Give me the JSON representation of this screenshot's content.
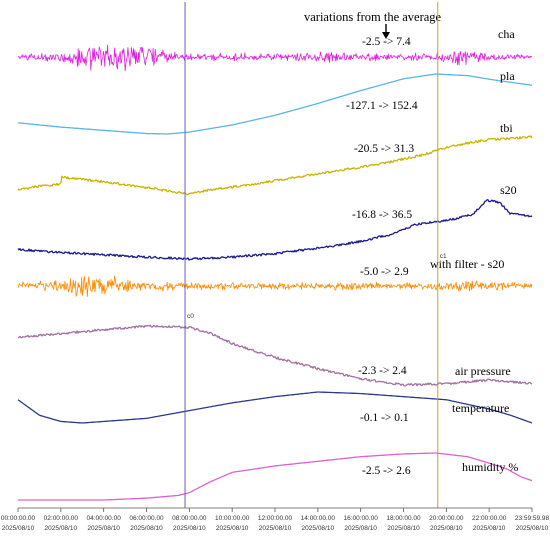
{
  "chart_data": {
    "type": "line",
    "title": "variations from the average",
    "x_tick_times": [
      "00:00:00.00",
      "02:00:00.00",
      "04:00:00.00",
      "06:00:00.00",
      "08:00:00.00",
      "10:00:00.00",
      "12:00:00.00",
      "14:00:00.00",
      "16:00:00.00",
      "18:00:00.00",
      "20:00:00.00",
      "22:00:00.00",
      "23:59:59.98"
    ],
    "x_tick_date": "2025/08/10",
    "x_range_hours": [
      0,
      24
    ],
    "cursor_lines": [
      {
        "label": "c0",
        "hour": 7.8,
        "color": "#6a5acd"
      },
      {
        "label": "c1",
        "hour": 19.6,
        "color": "#d4a017"
      }
    ],
    "series": [
      {
        "name": "cha",
        "range_text": "-2.5 -> 7.4",
        "color": "#e020e0",
        "kind": "noise",
        "points": [
          [
            0,
            0.5
          ],
          [
            2,
            1.0
          ],
          [
            3,
            2.5
          ],
          [
            4,
            3.0
          ],
          [
            5,
            2.6
          ],
          [
            6,
            2.0
          ],
          [
            7,
            1.0
          ],
          [
            8,
            0.6
          ],
          [
            10,
            0.8
          ],
          [
            12,
            0.6
          ],
          [
            14,
            1.0
          ],
          [
            16,
            0.7
          ],
          [
            18,
            0.6
          ],
          [
            19.5,
            0.7
          ],
          [
            20.5,
            1.6
          ],
          [
            22,
            0.7
          ],
          [
            24,
            0.4
          ]
        ]
      },
      {
        "name": "pla",
        "range_text": "-127.1 -> 152.4",
        "color": "#5ab4e5",
        "kind": "smooth",
        "points": [
          [
            0,
            -75
          ],
          [
            2,
            -95
          ],
          [
            4,
            -110
          ],
          [
            6,
            -125
          ],
          [
            7,
            -127.1
          ],
          [
            8,
            -118
          ],
          [
            10,
            -85
          ],
          [
            12,
            -40
          ],
          [
            14,
            15
          ],
          [
            16,
            75
          ],
          [
            18,
            130
          ],
          [
            19.5,
            152.4
          ],
          [
            21,
            145
          ],
          [
            22,
            128
          ],
          [
            24,
            100
          ]
        ]
      },
      {
        "name": "tbi",
        "range_text": "-20.5 -> 31.3",
        "color": "#c8b400",
        "kind": "noisy",
        "points": [
          [
            0,
            -15
          ],
          [
            1,
            -12
          ],
          [
            2,
            -10
          ],
          [
            2.05,
            -4
          ],
          [
            3,
            -6
          ],
          [
            4,
            -8
          ],
          [
            6,
            -13
          ],
          [
            7,
            -16
          ],
          [
            8,
            -19
          ],
          [
            9,
            -15
          ],
          [
            11,
            -10
          ],
          [
            13,
            -4
          ],
          [
            15,
            2
          ],
          [
            17,
            8
          ],
          [
            19,
            16
          ],
          [
            20,
            22
          ],
          [
            21,
            26
          ],
          [
            22,
            29
          ],
          [
            23,
            30
          ],
          [
            24,
            31.3
          ]
        ]
      },
      {
        "name": "s20",
        "range_text": "-16.8 -> 36.5",
        "color": "#1a1a8c",
        "kind": "noisy",
        "points": [
          [
            0,
            -8
          ],
          [
            2,
            -11
          ],
          [
            4,
            -13
          ],
          [
            6,
            -15
          ],
          [
            8,
            -16.8
          ],
          [
            10,
            -15
          ],
          [
            12,
            -12
          ],
          [
            14,
            -7
          ],
          [
            16,
            -1
          ],
          [
            17.5,
            6
          ],
          [
            18.5,
            14
          ],
          [
            19.5,
            17
          ],
          [
            20,
            18
          ],
          [
            21.2,
            23
          ],
          [
            21.9,
            36.5
          ],
          [
            22.5,
            34
          ],
          [
            23,
            24
          ],
          [
            24,
            22
          ]
        ]
      },
      {
        "name": "with filter - s20",
        "range_text": "-5.0 -> 2.9",
        "color": "#ff8a00",
        "kind": "noise",
        "points": [
          [
            0,
            1.0
          ],
          [
            2,
            1.4
          ],
          [
            3,
            2.8
          ],
          [
            4,
            2.5
          ],
          [
            5,
            2.0
          ],
          [
            6,
            1.3
          ],
          [
            8,
            0.8
          ],
          [
            10,
            0.9
          ],
          [
            12,
            0.8
          ],
          [
            14,
            1.0
          ],
          [
            16,
            0.8
          ],
          [
            18,
            0.7
          ],
          [
            20,
            1.0
          ],
          [
            21,
            1.6
          ],
          [
            22,
            0.9
          ],
          [
            24,
            0.7
          ]
        ]
      },
      {
        "name": "air pressure",
        "range_text": "-2.3 -> 2.4",
        "color": "#a070a0",
        "kind": "noisy",
        "points": [
          [
            0,
            1.5
          ],
          [
            2,
            1.8
          ],
          [
            4,
            2.1
          ],
          [
            6,
            2.4
          ],
          [
            8,
            2.3
          ],
          [
            9,
            1.8
          ],
          [
            10,
            1.0
          ],
          [
            12,
            -0.1
          ],
          [
            14,
            -1.0
          ],
          [
            16,
            -1.8
          ],
          [
            18,
            -2.3
          ],
          [
            20,
            -2.2
          ],
          [
            22,
            -1.9
          ],
          [
            24,
            -2.2
          ]
        ]
      },
      {
        "name": "temperature",
        "range_text": "-0.1 -> 0.1",
        "color": "#2a3a8a",
        "kind": "smooth",
        "points": [
          [
            0,
            0.05
          ],
          [
            1,
            -0.05
          ],
          [
            2,
            -0.09
          ],
          [
            3,
            -0.1
          ],
          [
            4,
            -0.09
          ],
          [
            6,
            -0.07
          ],
          [
            8,
            -0.02
          ],
          [
            10,
            0.03
          ],
          [
            12,
            0.07
          ],
          [
            14,
            0.1
          ],
          [
            16,
            0.09
          ],
          [
            18,
            0.07
          ],
          [
            20,
            0.05
          ],
          [
            22,
            -0.01
          ],
          [
            23,
            -0.05
          ],
          [
            24,
            -0.1
          ]
        ]
      },
      {
        "name": "humidity %",
        "range_text": "-2.5 -> 2.6",
        "color": "#e060d0",
        "kind": "smooth",
        "points": [
          [
            0,
            -2.5
          ],
          [
            4,
            -2.5
          ],
          [
            6,
            -2.3
          ],
          [
            7.5,
            -2.0
          ],
          [
            8,
            -1.7
          ],
          [
            9,
            -0.5
          ],
          [
            10,
            0.5
          ],
          [
            12,
            1.2
          ],
          [
            14,
            1.7
          ],
          [
            16,
            2.2
          ],
          [
            18,
            2.5
          ],
          [
            19.5,
            2.6
          ],
          [
            21,
            2.2
          ],
          [
            22,
            1.5
          ],
          [
            22.8,
            0.9
          ],
          [
            23.5,
            0.0
          ],
          [
            24,
            -0.4
          ]
        ]
      }
    ]
  }
}
